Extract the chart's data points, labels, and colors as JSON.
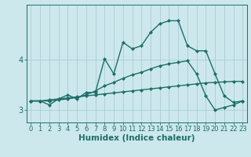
{
  "title": "",
  "xlabel": "Humidex (Indice chaleur)",
  "ylabel": "",
  "bg_color": "#cce8ec",
  "grid_color": "#aacdd4",
  "line_color": "#1e6e68",
  "x": [
    0,
    1,
    2,
    3,
    4,
    5,
    6,
    7,
    8,
    9,
    10,
    11,
    12,
    13,
    14,
    15,
    16,
    17,
    18,
    19,
    20,
    21,
    22,
    23
  ],
  "line1": [
    3.18,
    3.18,
    3.1,
    3.22,
    3.3,
    3.22,
    3.35,
    3.35,
    4.02,
    3.72,
    4.35,
    4.22,
    4.28,
    4.55,
    4.72,
    4.78,
    4.78,
    4.28,
    4.18,
    4.18,
    3.72,
    3.28,
    3.15,
    3.18
  ],
  "line2": [
    3.18,
    3.18,
    3.18,
    3.2,
    3.22,
    3.25,
    3.3,
    3.38,
    3.48,
    3.55,
    3.63,
    3.7,
    3.75,
    3.82,
    3.88,
    3.92,
    3.95,
    3.98,
    3.72,
    3.28,
    3.0,
    3.05,
    3.1,
    3.18
  ],
  "line3": [
    3.18,
    3.18,
    3.2,
    3.22,
    3.24,
    3.26,
    3.28,
    3.3,
    3.32,
    3.34,
    3.36,
    3.38,
    3.4,
    3.42,
    3.44,
    3.46,
    3.48,
    3.5,
    3.52,
    3.54,
    3.55,
    3.56,
    3.57,
    3.57
  ],
  "yticks": [
    3,
    4
  ],
  "ylim": [
    2.75,
    5.1
  ],
  "xlim": [
    -0.5,
    23.5
  ],
  "markersize": 2.5,
  "linewidth": 1.0,
  "tick_fontsize": 6,
  "label_fontsize": 7.5
}
